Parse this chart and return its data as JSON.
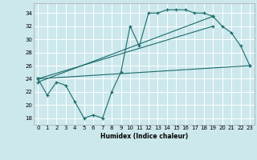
{
  "xlabel": "Humidex (Indice chaleur)",
  "bg_color": "#cce8ec",
  "grid_color": "#ffffff",
  "line_color": "#1a6b6b",
  "xlim": [
    -0.5,
    23.5
  ],
  "ylim": [
    17,
    35.5
  ],
  "yticks": [
    18,
    20,
    22,
    24,
    26,
    28,
    30,
    32,
    34
  ],
  "xticks": [
    0,
    1,
    2,
    3,
    4,
    5,
    6,
    7,
    8,
    9,
    10,
    11,
    12,
    13,
    14,
    15,
    16,
    17,
    18,
    19,
    20,
    21,
    22,
    23
  ],
  "series1_x": [
    0,
    1,
    2,
    3,
    4,
    5,
    6,
    7,
    8,
    9,
    10,
    11,
    12,
    13,
    14,
    15,
    16,
    17,
    18,
    19,
    20,
    21,
    22,
    23
  ],
  "series1_y": [
    24,
    21.5,
    23.5,
    23,
    20.5,
    18,
    18.5,
    18,
    22,
    25,
    32,
    29,
    34,
    34,
    34.5,
    34.5,
    34.5,
    34,
    34,
    33.5,
    32,
    31,
    29,
    26
  ],
  "series2_x": [
    0,
    23
  ],
  "series2_y": [
    24,
    26
  ],
  "series3_x": [
    0,
    19
  ],
  "series3_y": [
    24,
    32
  ],
  "series4_x": [
    0,
    19
  ],
  "series4_y": [
    23.5,
    33.5
  ]
}
